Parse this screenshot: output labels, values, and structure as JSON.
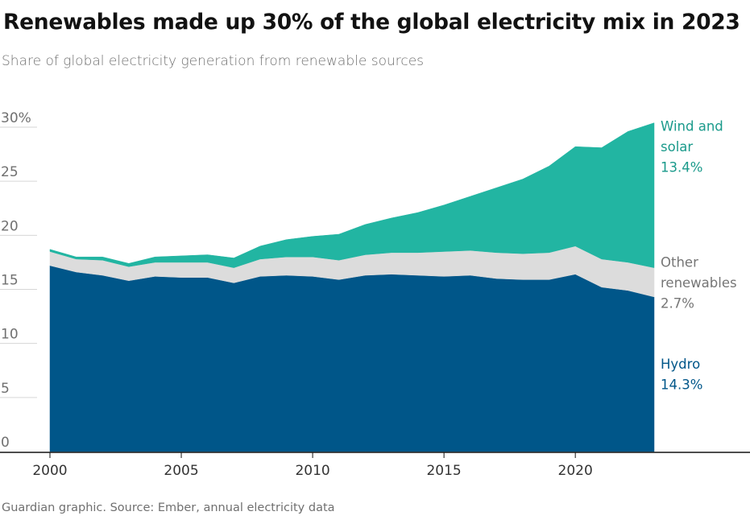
{
  "header": {
    "title": "Renewables made up 30% of the global electricity mix in 2023",
    "subtitle": "Share of global electricity generation from renewable sources"
  },
  "footer": {
    "source": "Guardian graphic. Source: Ember, annual electricity data"
  },
  "colors": {
    "hydro": "#005689",
    "other": "#dcdcdc",
    "wind_solar": "#22b5a2",
    "hydro_label": "#005689",
    "other_label": "#767676",
    "wind_solar_label": "#1a9a8b"
  },
  "chart_data": {
    "type": "area",
    "stacked": true,
    "x": [
      2000,
      2001,
      2002,
      2003,
      2004,
      2005,
      2006,
      2007,
      2008,
      2009,
      2010,
      2011,
      2012,
      2013,
      2014,
      2015,
      2016,
      2017,
      2018,
      2019,
      2020,
      2021,
      2022,
      2023
    ],
    "ylim": [
      0,
      30
    ],
    "xlim": [
      2000,
      2023
    ],
    "y_ticks": [
      {
        "value": 0,
        "label": "0"
      },
      {
        "value": 5,
        "label": "5"
      },
      {
        "value": 10,
        "label": "10"
      },
      {
        "value": 15,
        "label": "15"
      },
      {
        "value": 20,
        "label": "20"
      },
      {
        "value": 25,
        "label": "25"
      },
      {
        "value": 30,
        "label": "30%"
      }
    ],
    "x_ticks": [
      {
        "value": 2000,
        "label": "2000"
      },
      {
        "value": 2005,
        "label": "2005"
      },
      {
        "value": 2010,
        "label": "2010"
      },
      {
        "value": 2015,
        "label": "2015"
      },
      {
        "value": 2020,
        "label": "2020"
      }
    ],
    "grid": true,
    "series": [
      {
        "key": "hydro",
        "label_lines": [
          "Hydro",
          "14.3%"
        ],
        "values": [
          17.2,
          16.6,
          16.3,
          15.8,
          16.2,
          16.1,
          16.1,
          15.6,
          16.2,
          16.3,
          16.2,
          15.9,
          16.3,
          16.4,
          16.3,
          16.2,
          16.3,
          16.0,
          15.9,
          15.9,
          16.4,
          15.2,
          14.9,
          14.3
        ]
      },
      {
        "key": "other",
        "label_lines": [
          "Other",
          "renewables",
          "2.7%"
        ],
        "values": [
          1.3,
          1.2,
          1.4,
          1.3,
          1.3,
          1.4,
          1.4,
          1.4,
          1.6,
          1.7,
          1.8,
          1.8,
          1.9,
          2.0,
          2.1,
          2.3,
          2.3,
          2.4,
          2.4,
          2.5,
          2.6,
          2.6,
          2.6,
          2.7
        ]
      },
      {
        "key": "wind_solar",
        "label_lines": [
          "Wind and",
          "solar",
          "13.4%"
        ],
        "values": [
          0.2,
          0.2,
          0.3,
          0.3,
          0.5,
          0.6,
          0.7,
          0.9,
          1.2,
          1.6,
          1.9,
          2.4,
          2.8,
          3.2,
          3.7,
          4.3,
          5.0,
          6.0,
          6.9,
          8.0,
          9.2,
          10.3,
          12.1,
          13.4
        ]
      }
    ]
  }
}
